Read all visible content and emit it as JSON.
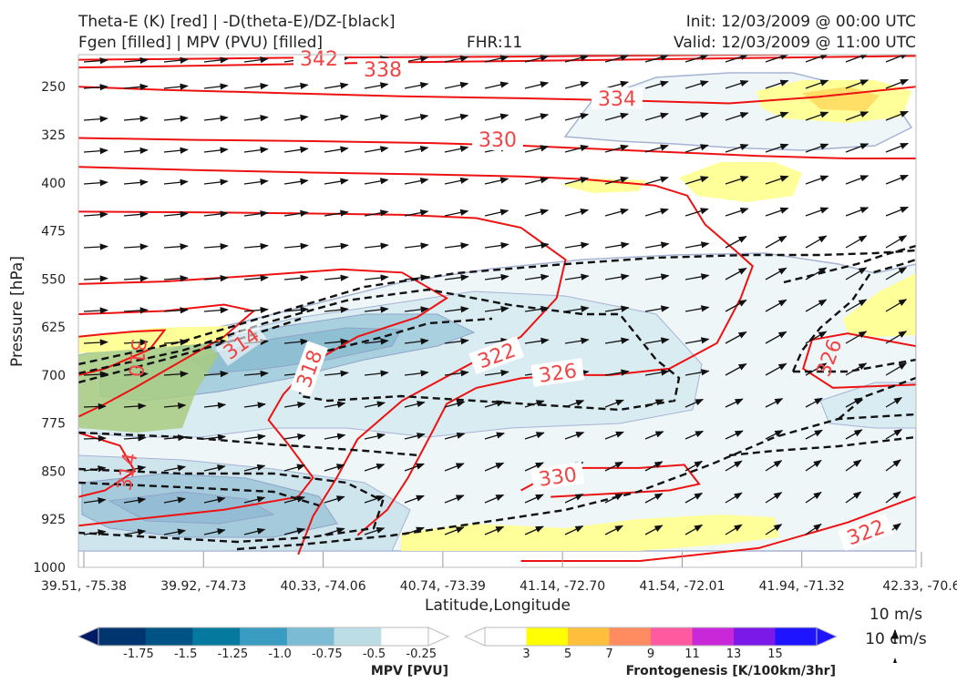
{
  "header": {
    "title_line1": "Theta-E (K) [red] | -D(theta-E)/DZ-[black]",
    "title_line2": "Fgen [filled] | MPV (PVU) [filled]",
    "fhr": "FHR:11",
    "init": "Init: 12/03/2009 @ 00:00 UTC",
    "valid": "Valid: 12/03/2009 @ 11:00 UTC"
  },
  "colors": {
    "theta_e": "#ee1111",
    "dtheta_dz": "#111111",
    "mpv_fill": [
      "#001a66",
      "#003570",
      "#015385",
      "#057a9e",
      "#3a9cc0",
      "#7bbcd4",
      "#bcdce6",
      "#ffffff"
    ],
    "fgen_fill": [
      "#ffff88",
      "#ffff00",
      "#ffbf3c",
      "#ff8c60",
      "#ff5aa0",
      "#c828d8",
      "#7a19e8",
      "#1e14ff"
    ]
  },
  "chart_data": {
    "type": "cross-section",
    "xlabel": "Latitude,Longitude",
    "ylabel": "Pressure [hPa]",
    "x_ticks": [
      "39.51, -75.38",
      "39.92, -74.73",
      "40.33, -74.06",
      "40.74, -73.39",
      "41.14, -72.70",
      "41.54, -72.01",
      "41.94, -71.32",
      "42.33, -70.6"
    ],
    "y_ticks": [
      250,
      325,
      400,
      475,
      550,
      625,
      700,
      775,
      850,
      925,
      1000
    ],
    "ylim": [
      1000,
      200
    ],
    "y_scale": "inverted",
    "theta_e_contour_labels": [
      "342",
      "338",
      "334",
      "330",
      "326",
      "322",
      "318",
      "314",
      "310",
      "330",
      "314",
      "326",
      "322"
    ],
    "theta_e_contours": [
      {
        "level": 342,
        "points": [
          [
            39.51,
            208
          ],
          [
            39.8,
            207
          ],
          [
            40.2,
            205
          ],
          [
            40.6,
            204
          ],
          [
            41.0,
            203
          ],
          [
            41.5,
            201
          ],
          [
            41.9,
            200
          ]
        ]
      },
      {
        "level": 338,
        "points": [
          [
            39.51,
            220
          ],
          [
            39.8,
            218
          ],
          [
            40.2,
            215
          ],
          [
            40.6,
            212
          ],
          [
            41.0,
            210
          ],
          [
            41.5,
            207
          ],
          [
            42.0,
            204
          ],
          [
            42.33,
            202
          ]
        ]
      },
      {
        "level": 334,
        "points": [
          [
            39.51,
            250
          ],
          [
            39.8,
            255
          ],
          [
            40.2,
            260
          ],
          [
            40.6,
            265
          ],
          [
            41.0,
            268
          ],
          [
            41.4,
            272
          ],
          [
            41.7,
            276
          ],
          [
            42.0,
            266
          ],
          [
            42.33,
            250
          ]
        ]
      },
      {
        "level": 330,
        "points": [
          [
            39.51,
            330
          ],
          [
            39.9,
            333
          ],
          [
            40.3,
            335
          ],
          [
            40.7,
            338
          ],
          [
            41.0,
            342
          ],
          [
            41.4,
            350
          ],
          [
            41.8,
            358
          ],
          [
            42.1,
            362
          ],
          [
            42.33,
            362
          ]
        ]
      },
      {
        "level": 326,
        "points": [
          [
            39.51,
            375
          ],
          [
            39.9,
            380
          ],
          [
            40.3,
            384
          ],
          [
            40.7,
            387
          ],
          [
            41.0,
            390
          ],
          [
            41.2,
            394
          ],
          [
            41.45,
            404
          ],
          [
            41.56,
            420
          ],
          [
            41.62,
            465
          ],
          [
            41.72,
            505
          ],
          [
            41.78,
            530
          ],
          [
            41.74,
            580
          ],
          [
            41.66,
            650
          ],
          [
            41.5,
            690
          ],
          [
            41.3,
            700
          ],
          [
            41.14,
            700
          ],
          [
            41.0,
            705
          ],
          [
            40.85,
            720
          ],
          [
            40.75,
            745
          ],
          [
            40.7,
            790
          ],
          [
            40.62,
            860
          ],
          [
            40.55,
            910
          ],
          [
            40.45,
            950
          ]
        ]
      },
      {
        "level": 322,
        "points": [
          [
            39.51,
            445
          ],
          [
            39.9,
            446
          ],
          [
            40.3,
            448
          ],
          [
            40.6,
            450
          ],
          [
            40.85,
            455
          ],
          [
            41.0,
            470
          ],
          [
            41.15,
            520
          ],
          [
            41.12,
            580
          ],
          [
            41.0,
            640
          ],
          [
            40.8,
            690
          ],
          [
            40.6,
            740
          ],
          [
            40.45,
            800
          ],
          [
            40.38,
            860
          ],
          [
            40.3,
            920
          ],
          [
            40.25,
            980
          ]
        ]
      },
      {
        "level": 318,
        "points": [
          [
            39.51,
            558
          ],
          [
            39.8,
            554
          ],
          [
            40.1,
            545
          ],
          [
            40.4,
            535
          ],
          [
            40.6,
            540
          ],
          [
            40.75,
            580
          ],
          [
            40.65,
            610
          ],
          [
            40.45,
            640
          ],
          [
            40.3,
            680
          ],
          [
            40.2,
            730
          ],
          [
            40.15,
            770
          ],
          [
            40.22,
            810
          ],
          [
            40.3,
            860
          ],
          [
            40.25,
            890
          ],
          [
            40.0,
            910
          ],
          [
            39.7,
            925
          ],
          [
            39.51,
            935
          ]
        ]
      },
      {
        "level": 314,
        "points": [
          [
            39.51,
            605
          ],
          [
            39.8,
            600
          ],
          [
            40.0,
            590
          ],
          [
            40.1,
            600
          ],
          [
            40.0,
            640
          ],
          [
            39.85,
            680
          ],
          [
            39.7,
            720
          ],
          [
            39.6,
            745
          ],
          [
            39.51,
            765
          ]
        ]
      },
      {
        "level": 310,
        "points": [
          [
            39.51,
            640
          ],
          [
            39.6,
            636
          ],
          [
            39.7,
            632
          ],
          [
            39.8,
            630
          ],
          [
            39.75,
            660
          ],
          [
            39.6,
            690
          ],
          [
            39.51,
            700
          ]
        ]
      },
      {
        "level": 330,
        "points": [
          [
            41.0,
            880
          ],
          [
            41.1,
            855
          ],
          [
            41.2,
            845
          ],
          [
            41.4,
            845
          ],
          [
            41.55,
            840
          ],
          [
            41.6,
            870
          ],
          [
            41.5,
            880
          ],
          [
            41.3,
            885
          ],
          [
            41.1,
            890
          ]
        ]
      },
      {
        "level": 314,
        "points": [
          [
            39.51,
            790
          ],
          [
            39.65,
            810
          ],
          [
            39.7,
            850
          ],
          [
            39.6,
            880
          ],
          [
            39.51,
            890
          ]
        ]
      },
      {
        "level": 326,
        "points": [
          [
            42.33,
            655
          ],
          [
            42.1,
            635
          ],
          [
            41.98,
            645
          ],
          [
            41.95,
            690
          ],
          [
            42.05,
            720
          ],
          [
            42.33,
            715
          ]
        ]
      },
      {
        "level": 322,
        "points": [
          [
            41.0,
            990
          ],
          [
            41.4,
            990
          ],
          [
            41.8,
            970
          ],
          [
            42.1,
            930
          ],
          [
            42.33,
            890
          ]
        ]
      }
    ],
    "mpv_colorbar": {
      "label": "MPV [PVU]",
      "ticks": [
        "-1.75",
        "-1.5",
        "-1.25",
        "-1.0",
        "-0.75",
        "-0.5",
        "-0.25"
      ]
    },
    "fgen_colorbar": {
      "label": "Frontogenesis [K/100km/3hr]",
      "ticks": [
        "3",
        "5",
        "7",
        "9",
        "11",
        "13",
        "15"
      ]
    },
    "vector_key": {
      "line1": "10 m/s",
      "line2": "10 cm/s"
    }
  }
}
